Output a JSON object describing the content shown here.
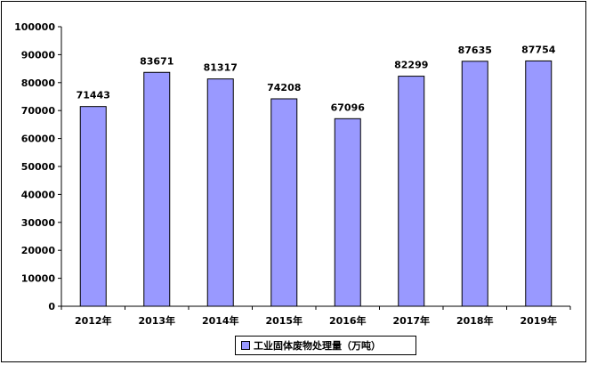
{
  "chart_data": {
    "type": "bar",
    "categories": [
      "2012年",
      "2013年",
      "2014年",
      "2015年",
      "2016年",
      "2017年",
      "2018年",
      "2019年"
    ],
    "series": [
      {
        "name": "工业固体废物处理量（万吨）",
        "values": [
          71443,
          83671,
          81317,
          74208,
          67096,
          82299,
          87635,
          87754
        ],
        "color": "#9999ff"
      }
    ],
    "data_labels": [
      "71443",
      "83671",
      "81317",
      "74208",
      "67096",
      "82299",
      "87635",
      "87754"
    ],
    "ylim": [
      0,
      100000
    ],
    "yticks": [
      0,
      10000,
      20000,
      30000,
      40000,
      50000,
      60000,
      70000,
      80000,
      90000,
      100000
    ],
    "ytick_labels": [
      "0",
      "10000",
      "20000",
      "30000",
      "40000",
      "50000",
      "60000",
      "70000",
      "80000",
      "90000",
      "100000"
    ],
    "grid": false,
    "legend_position": "bottom",
    "title": "",
    "xlabel": "",
    "ylabel": ""
  }
}
